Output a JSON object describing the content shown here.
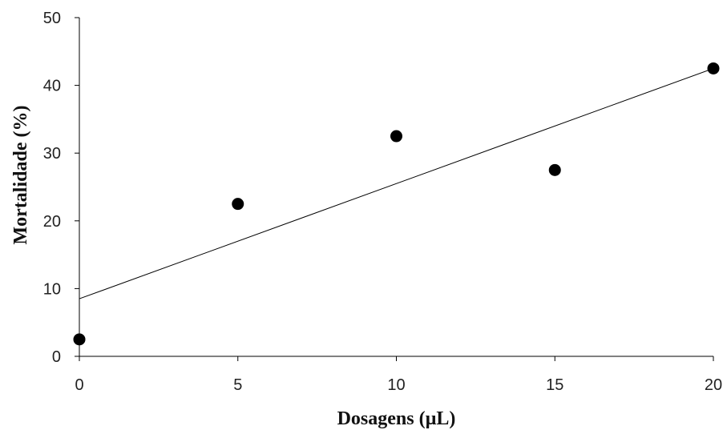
{
  "chart_data": {
    "type": "scatter",
    "title": "",
    "xlabel": "Dosagens (µL)",
    "ylabel": "Mortalidade (%)",
    "xlim": [
      0,
      20
    ],
    "ylim": [
      0,
      50
    ],
    "x_ticks": [
      0,
      5,
      10,
      15,
      20
    ],
    "y_ticks": [
      0,
      10,
      20,
      30,
      40,
      50
    ],
    "x_tick_labels": [
      "0",
      "5",
      "10",
      "15",
      "20"
    ],
    "y_tick_labels": [
      "0",
      "10",
      "20",
      "30",
      "40",
      "50"
    ],
    "grid": false,
    "legend": "none",
    "series": [
      {
        "x": [
          0,
          5,
          10,
          15,
          20
        ],
        "y": [
          2.5,
          22.5,
          32.5,
          27.5,
          42.5
        ],
        "marker_color": "#000000"
      }
    ],
    "trendline": {
      "type": "linear",
      "x": [
        0,
        20
      ],
      "y": [
        8.5,
        42.5
      ],
      "color": "#000000"
    }
  }
}
